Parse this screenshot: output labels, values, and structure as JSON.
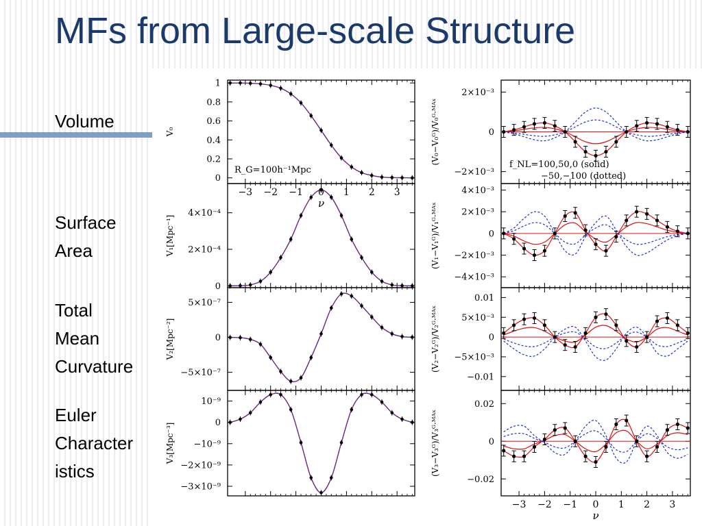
{
  "slide": {
    "title": "MFs from Large-scale Structure",
    "row_labels": [
      [
        "Volume"
      ],
      [
        "Surface",
        "Area"
      ],
      [
        "Total",
        "Mean",
        "Curvature"
      ],
      [
        "Euler",
        "Character",
        "istics"
      ]
    ]
  },
  "colors": {
    "title": "#1a3a6b",
    "accent_bar": "#7f9fc4",
    "curve_gaussian": "#3030c0",
    "curve_red": "#dd1111",
    "curve_blue_dotted": "#1a2ee0",
    "points": "#000000"
  },
  "chart_data": [
    {
      "type": "line",
      "panel": "V0",
      "xlabel": "ν",
      "ylabel": "V₀",
      "xlim": [
        -3.7,
        3.7
      ],
      "ylim": [
        -0.06,
        1.03
      ],
      "yticks": [
        {
          "v": 1,
          "t": "1"
        },
        {
          "v": 0.8,
          "t": "0.8"
        },
        {
          "v": 0.6,
          "t": "0.6"
        },
        {
          "v": 0.4,
          "t": "0.4"
        },
        {
          "v": 0.2,
          "t": "0.2"
        },
        {
          "v": 0,
          "t": "0"
        }
      ],
      "xticks": [
        {
          "v": -3,
          "t": "−3"
        },
        {
          "v": -2,
          "t": "−2"
        },
        {
          "v": -1,
          "t": "−1"
        },
        {
          "v": 0,
          "t": "0"
        },
        {
          "v": 1,
          "t": "1"
        },
        {
          "v": 2,
          "t": "2"
        },
        {
          "v": 3,
          "t": "3"
        }
      ],
      "annotation": "R_G=100h⁻¹Mpc",
      "x": [
        -3.6,
        -3.2,
        -2.8,
        -2.4,
        -2.0,
        -1.6,
        -1.2,
        -0.8,
        -0.4,
        0,
        0.4,
        0.8,
        1.2,
        1.6,
        2.0,
        2.4,
        2.8,
        3.2,
        3.6
      ],
      "values": [
        1.0,
        1.0,
        0.997,
        0.99,
        0.975,
        0.945,
        0.885,
        0.79,
        0.655,
        0.5,
        0.345,
        0.21,
        0.115,
        0.055,
        0.025,
        0.008,
        0.003,
        0.001,
        0.0
      ]
    },
    {
      "type": "line",
      "panel": "V1",
      "ylabel": "V₁[Mpc⁻¹]",
      "xlim": [
        -3.7,
        3.7
      ],
      "ylim": [
        -1e-05,
        0.00056
      ],
      "yticks": [
        {
          "v": 0.0004,
          "t": "4×10⁻⁴"
        },
        {
          "v": 0.0002,
          "t": "2×10⁻⁴"
        },
        {
          "v": 0,
          "t": "0"
        }
      ],
      "x": [
        -3.6,
        -3.2,
        -2.8,
        -2.4,
        -2.0,
        -1.6,
        -1.2,
        -0.8,
        -0.4,
        0,
        0.4,
        0.8,
        1.2,
        1.6,
        2.0,
        2.4,
        2.8,
        3.2,
        3.6
      ],
      "values": [
        0.0,
        1e-06,
        5e-06,
        2.5e-05,
        7.5e-05,
        0.000155,
        0.000255,
        0.000385,
        0.000485,
        0.000525,
        0.000485,
        0.000385,
        0.000255,
        0.000155,
        7.5e-05,
        2.5e-05,
        5e-06,
        1e-06,
        0.0
      ]
    },
    {
      "type": "line",
      "panel": "V2",
      "ylabel": "V₂[Mpc⁻²]",
      "xlim": [
        -3.7,
        3.7
      ],
      "ylim": [
        -7.6e-07,
        7.1e-07
      ],
      "yticks": [
        {
          "v": 5e-07,
          "t": "5×10⁻⁷"
        },
        {
          "v": 0,
          "t": "0"
        },
        {
          "v": -5e-07,
          "t": "−5×10⁻⁷"
        }
      ],
      "x": [
        -3.6,
        -3.2,
        -2.8,
        -2.4,
        -2.0,
        -1.6,
        -1.2,
        -0.8,
        -0.4,
        0,
        0.4,
        0.8,
        1.2,
        1.6,
        2.0,
        2.4,
        2.8,
        3.2,
        3.6
      ],
      "values": [
        -2e-09,
        -5e-09,
        -3e-08,
        -1e-07,
        -2.9e-07,
        -4.9e-07,
        -6.3e-07,
        -5.8e-07,
        -2.9e-07,
        5e-08,
        4.2e-07,
        6.2e-07,
        5.9e-07,
        4.5e-07,
        2.9e-07,
        1.4e-07,
        5e-08,
        1e-08,
        1e-09
      ]
    },
    {
      "type": "line",
      "panel": "V3",
      "ylabel": "V₃[Mpc⁻³]",
      "xlim": [
        -3.7,
        3.7
      ],
      "ylim": [
        -3.45e-09,
        1.5e-09
      ],
      "yticks": [
        {
          "v": 1e-09,
          "t": "10⁻⁹"
        },
        {
          "v": 0,
          "t": "0"
        },
        {
          "v": -1e-09,
          "t": "−10⁻⁹"
        },
        {
          "v": -2e-09,
          "t": "−2×10⁻⁹"
        },
        {
          "v": -3e-09,
          "t": "−3×10⁻⁹"
        }
      ],
      "x": [
        -3.6,
        -3.2,
        -2.8,
        -2.4,
        -2.0,
        -1.6,
        -1.2,
        -0.8,
        -0.4,
        0,
        0.4,
        0.8,
        1.2,
        1.6,
        2.0,
        2.4,
        2.8,
        3.2,
        3.6
      ],
      "values": [
        0.0,
        1.5e-10,
        4.5e-10,
        9.5e-10,
        1.3e-09,
        1.3e-09,
        6e-10,
        -9.5e-10,
        -2.6e-09,
        -3.3e-09,
        -2.6e-09,
        -9.5e-10,
        6e-10,
        1.3e-09,
        1.3e-09,
        9.5e-10,
        4.5e-10,
        1.5e-10,
        0.0
      ]
    },
    {
      "type": "line",
      "panel": "dV0",
      "ylabel": "(V₀−V₀ᴳ)/V₀ᴳ·ᴹᴬˣ",
      "xlim": [
        -3.7,
        3.7
      ],
      "ylim": [
        -0.0026,
        0.0026
      ],
      "yticks": [
        {
          "v": 0.002,
          "t": "2×10⁻³"
        },
        {
          "v": 0,
          "t": "0"
        },
        {
          "v": -0.002,
          "t": "−2×10⁻³"
        }
      ],
      "legend": [
        "f_NL=100,50,0 (solid)",
        "−50,−100 (dotted)"
      ],
      "x": [
        -3.6,
        -3.2,
        -2.8,
        -2.4,
        -2.0,
        -1.6,
        -1.2,
        -0.8,
        -0.4,
        0,
        0.4,
        0.8,
        1.2,
        1.6,
        2.0,
        2.4,
        2.8,
        3.2,
        3.6
      ],
      "values": [
        0.0,
        0.0001,
        0.00025,
        0.0004,
        0.00045,
        0.0003,
        0.0,
        -0.0005,
        -0.001,
        -0.0012,
        -0.001,
        -0.0005,
        0.0,
        0.0003,
        0.00045,
        0.0004,
        0.00025,
        0.0001,
        0.0
      ],
      "series": [
        {
          "scale": 1.0,
          "style": "solid"
        },
        {
          "scale": 0.5,
          "style": "solid"
        },
        {
          "scale": 0.0,
          "style": "solid"
        },
        {
          "scale": -0.5,
          "style": "dotted"
        },
        {
          "scale": -1.0,
          "style": "dotted"
        }
      ]
    },
    {
      "type": "line",
      "panel": "dV1",
      "ylabel": "(V₁−V₁ᴳ)/V₁ᴳ·ᴹᴬˣ",
      "xlim": [
        -3.7,
        3.7
      ],
      "ylim": [
        -0.005,
        0.0046
      ],
      "yticks": [
        {
          "v": 0.004,
          "t": "4×10⁻³"
        },
        {
          "v": 0.002,
          "t": "2×10⁻³"
        },
        {
          "v": 0,
          "t": "0"
        },
        {
          "v": -0.002,
          "t": "−2×10⁻³"
        },
        {
          "v": -0.004,
          "t": "−4×10⁻³"
        }
      ],
      "x": [
        -3.6,
        -3.2,
        -2.8,
        -2.4,
        -2.0,
        -1.6,
        -1.2,
        -0.8,
        -0.4,
        0,
        0.4,
        0.8,
        1.2,
        1.6,
        2.0,
        2.4,
        2.8,
        3.2,
        3.6
      ],
      "values": [
        0.0,
        -0.0005,
        -0.0014,
        -0.002,
        -0.0016,
        0.0,
        0.0016,
        0.0019,
        0.0003,
        -0.001,
        -0.0016,
        -0.0003,
        0.0012,
        0.002,
        0.0018,
        0.0012,
        0.0006,
        0.0002,
        0.0
      ],
      "series": [
        {
          "scale": 1.0,
          "style": "solid"
        },
        {
          "scale": 0.5,
          "style": "solid"
        },
        {
          "scale": 0.0,
          "style": "solid"
        },
        {
          "scale": -0.5,
          "style": "dotted"
        },
        {
          "scale": -1.0,
          "style": "dotted"
        }
      ]
    },
    {
      "type": "line",
      "panel": "dV2",
      "ylabel": "(V₂−V₂ᴳ)/V₂ᴳ·ᴹᴬˣ",
      "xlim": [
        -3.7,
        3.7
      ],
      "ylim": [
        -0.0135,
        0.0125
      ],
      "yticks": [
        {
          "v": 0.01,
          "t": "0.01"
        },
        {
          "v": 0.005,
          "t": "5×10⁻³"
        },
        {
          "v": 0,
          "t": "0"
        },
        {
          "v": -0.005,
          "t": "−5×10⁻³"
        },
        {
          "v": -0.01,
          "t": "−0.01"
        }
      ],
      "x": [
        -3.6,
        -3.2,
        -2.8,
        -2.4,
        -2.0,
        -1.6,
        -1.2,
        -0.8,
        -0.4,
        0,
        0.4,
        0.8,
        1.2,
        1.6,
        2.0,
        2.4,
        2.8,
        3.2,
        3.6
      ],
      "values": [
        0.001,
        0.003,
        0.0045,
        0.0048,
        0.003,
        0.0,
        -0.002,
        -0.0025,
        0.001,
        0.005,
        0.0058,
        0.003,
        -0.001,
        -0.0025,
        0.0,
        0.004,
        0.0048,
        0.003,
        0.001
      ],
      "series": [
        {
          "scale": 1.0,
          "style": "solid"
        },
        {
          "scale": 0.5,
          "style": "solid"
        },
        {
          "scale": 0.0,
          "style": "solid"
        },
        {
          "scale": -0.5,
          "style": "dotted"
        },
        {
          "scale": -1.0,
          "style": "dotted"
        }
      ]
    },
    {
      "type": "line",
      "panel": "dV3",
      "ylabel": "(V₃−V₃ᴳ)/V₃ᴳ·ᴹᴬˣ",
      "xlim": [
        -3.7,
        3.7
      ],
      "ylim": [
        -0.029,
        0.027
      ],
      "xlabel": "ν",
      "yticks": [
        {
          "v": 0.02,
          "t": "0.02"
        },
        {
          "v": 0,
          "t": "0"
        },
        {
          "v": -0.02,
          "t": "−0.02"
        }
      ],
      "xticks": [
        {
          "v": -3,
          "t": "−3"
        },
        {
          "v": -2,
          "t": "−2"
        },
        {
          "v": -1,
          "t": "−1"
        },
        {
          "v": 0,
          "t": "0"
        },
        {
          "v": 1,
          "t": "1"
        },
        {
          "v": 2,
          "t": "2"
        },
        {
          "v": 3,
          "t": "3"
        }
      ],
      "x": [
        -3.6,
        -3.2,
        -2.8,
        -2.4,
        -2.0,
        -1.6,
        -1.2,
        -0.8,
        -0.4,
        0,
        0.4,
        0.8,
        1.2,
        1.6,
        2.0,
        2.4,
        2.8,
        3.2,
        3.6
      ],
      "values": [
        -0.005,
        -0.008,
        -0.008,
        -0.003,
        0.001,
        0.006,
        0.007,
        0.0,
        -0.008,
        -0.011,
        -0.003,
        0.009,
        0.011,
        0.0,
        -0.008,
        -0.003,
        0.006,
        0.009,
        0.007
      ],
      "series": [
        {
          "scale": 1.0,
          "style": "solid"
        },
        {
          "scale": 0.5,
          "style": "solid"
        },
        {
          "scale": 0.0,
          "style": "solid"
        },
        {
          "scale": -0.5,
          "style": "dotted"
        },
        {
          "scale": -1.0,
          "style": "dotted"
        }
      ]
    }
  ]
}
